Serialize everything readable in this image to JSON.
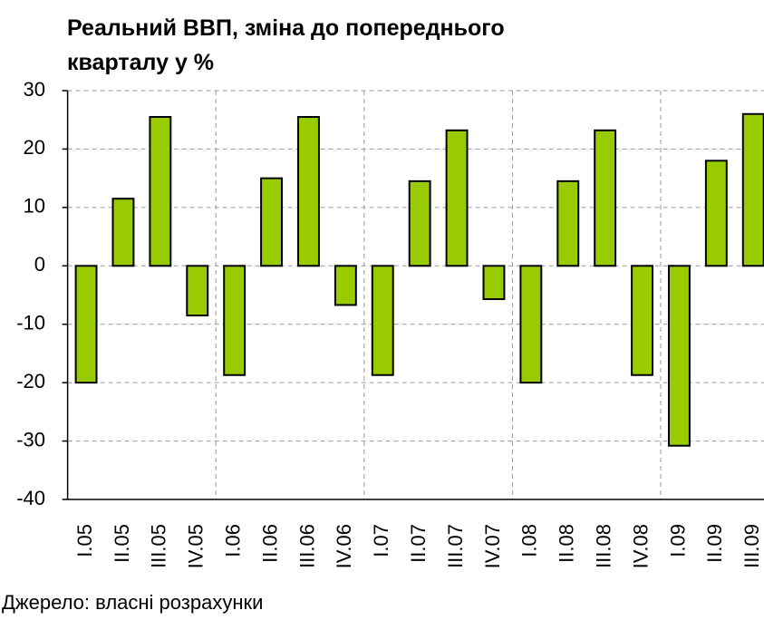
{
  "chart_data": {
    "type": "bar",
    "title": "Реальний ВВП, зміна до попереднього кварталу у %",
    "source": "Джерело: власні розрахунки",
    "categories": [
      "I.05",
      "II.05",
      "III.05",
      "IV.05",
      "I.06",
      "II.06",
      "III.06",
      "IV.06",
      "I.07",
      "II.07",
      "III.07",
      "IV.07",
      "I.08",
      "II.08",
      "III.08",
      "IV.08",
      "I.09",
      "II.09",
      "III.09"
    ],
    "values": [
      -20,
      11.5,
      25.5,
      -8.5,
      -18.7,
      15,
      25.5,
      -6.7,
      -18.7,
      14.5,
      23.2,
      -5.7,
      -20,
      14.5,
      23.2,
      -18.7,
      -30.8,
      18,
      26
    ],
    "color": "#99cc00",
    "ylim": [
      -40,
      30
    ],
    "yticks": [
      -40,
      -30,
      -20,
      -10,
      0,
      10,
      20,
      30
    ],
    "grid": true
  }
}
